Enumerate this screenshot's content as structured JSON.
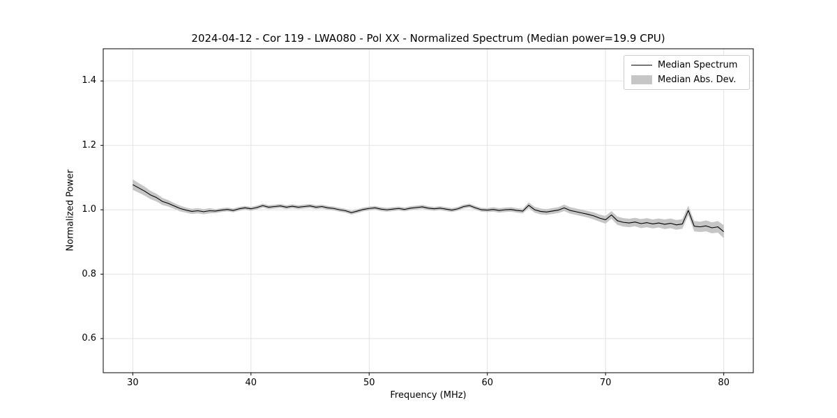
{
  "chart_data": {
    "type": "line",
    "title": "2024-04-12 - Cor 119 - LWA080 - Pol XX - Normalized Spectrum (Median power=19.9 CPU)",
    "xlabel": "Frequency (MHz)",
    "ylabel": "Normalized Power",
    "xlim": [
      27.5,
      82.5
    ],
    "ylim": [
      0.494,
      1.5
    ],
    "xticks": [
      30,
      40,
      50,
      60,
      70,
      80
    ],
    "xtick_labels": [
      "30",
      "40",
      "50",
      "60",
      "70",
      "80"
    ],
    "yticks": [
      0.6,
      0.8,
      1.0,
      1.2,
      1.4
    ],
    "ytick_labels": [
      "0.6",
      "0.8",
      "1.0",
      "1.2",
      "1.4"
    ],
    "grid": true,
    "legend_position": "upper right",
    "colors": {
      "line": "#000000",
      "band": "#c6c6c6",
      "grid": "#e0e0e0",
      "frame": "#000000"
    },
    "legend": {
      "entries": [
        {
          "label": "Median Spectrum",
          "type": "line"
        },
        {
          "label": "Median Abs. Dev.",
          "type": "band"
        }
      ]
    },
    "x": [
      30,
      30.5,
      31,
      31.5,
      32,
      32.5,
      33,
      33.5,
      34,
      34.5,
      35,
      35.5,
      36,
      36.5,
      37,
      37.5,
      38,
      38.5,
      39,
      39.5,
      40,
      40.5,
      41,
      41.5,
      42,
      42.5,
      43,
      43.5,
      44,
      44.5,
      45,
      45.5,
      46,
      46.5,
      47,
      47.5,
      48,
      48.5,
      49,
      49.5,
      50,
      50.5,
      51,
      51.5,
      52,
      52.5,
      53,
      53.5,
      54,
      54.5,
      55,
      55.5,
      56,
      56.5,
      57,
      57.5,
      58,
      58.5,
      59,
      59.5,
      60,
      60.5,
      61,
      61.5,
      62,
      62.5,
      63,
      63.5,
      64,
      64.5,
      65,
      65.5,
      66,
      66.5,
      67,
      67.5,
      68,
      68.5,
      69,
      69.5,
      70,
      70.5,
      71,
      71.5,
      72,
      72.5,
      73,
      73.5,
      74,
      74.5,
      75,
      75.5,
      76,
      76.5,
      77,
      77.5,
      78,
      78.5,
      79,
      79.5,
      80
    ],
    "series": [
      {
        "name": "Median Spectrum",
        "type": "line",
        "y": [
          1.078,
          1.068,
          1.058,
          1.046,
          1.038,
          1.026,
          1.02,
          1.012,
          1.004,
          0.999,
          0.995,
          0.997,
          0.994,
          0.997,
          0.996,
          0.999,
          1.001,
          0.998,
          1.003,
          1.006,
          1.003,
          1.007,
          1.013,
          1.008,
          1.01,
          1.012,
          1.008,
          1.011,
          1.008,
          1.01,
          1.012,
          1.008,
          1.01,
          1.006,
          1.004,
          1.0,
          0.997,
          0.991,
          0.996,
          1.001,
          1.004,
          1.006,
          1.002,
          1.0,
          1.002,
          1.004,
          1.001,
          1.005,
          1.007,
          1.009,
          1.005,
          1.003,
          1.005,
          1.002,
          0.999,
          1.003,
          1.01,
          1.013,
          1.006,
          1.0,
          0.999,
          1.001,
          0.998,
          1.0,
          1.001,
          0.998,
          0.996,
          1.014,
          1.0,
          0.995,
          0.993,
          0.996,
          0.999,
          1.006,
          0.998,
          0.994,
          0.99,
          0.986,
          0.981,
          0.974,
          0.969,
          0.984,
          0.966,
          0.961,
          0.959,
          0.962,
          0.957,
          0.96,
          0.956,
          0.959,
          0.955,
          0.958,
          0.953,
          0.956,
          0.998,
          0.949,
          0.947,
          0.95,
          0.944,
          0.947,
          0.932
        ]
      },
      {
        "name": "Median Abs. Dev.",
        "type": "band",
        "half_width": [
          0.016,
          0.015,
          0.014,
          0.013,
          0.012,
          0.011,
          0.01,
          0.009,
          0.009,
          0.008,
          0.008,
          0.008,
          0.008,
          0.008,
          0.006,
          0.006,
          0.006,
          0.006,
          0.006,
          0.006,
          0.006,
          0.006,
          0.006,
          0.006,
          0.006,
          0.006,
          0.006,
          0.006,
          0.006,
          0.006,
          0.006,
          0.006,
          0.006,
          0.006,
          0.006,
          0.006,
          0.006,
          0.006,
          0.006,
          0.006,
          0.006,
          0.006,
          0.006,
          0.006,
          0.006,
          0.006,
          0.006,
          0.006,
          0.006,
          0.006,
          0.006,
          0.006,
          0.006,
          0.006,
          0.006,
          0.006,
          0.006,
          0.006,
          0.006,
          0.006,
          0.006,
          0.007,
          0.007,
          0.007,
          0.007,
          0.007,
          0.007,
          0.009,
          0.009,
          0.009,
          0.009,
          0.009,
          0.009,
          0.01,
          0.01,
          0.01,
          0.01,
          0.01,
          0.011,
          0.011,
          0.012,
          0.012,
          0.013,
          0.013,
          0.013,
          0.013,
          0.014,
          0.014,
          0.014,
          0.014,
          0.015,
          0.015,
          0.015,
          0.015,
          0.015,
          0.016,
          0.016,
          0.017,
          0.017,
          0.018,
          0.02
        ]
      }
    ]
  }
}
